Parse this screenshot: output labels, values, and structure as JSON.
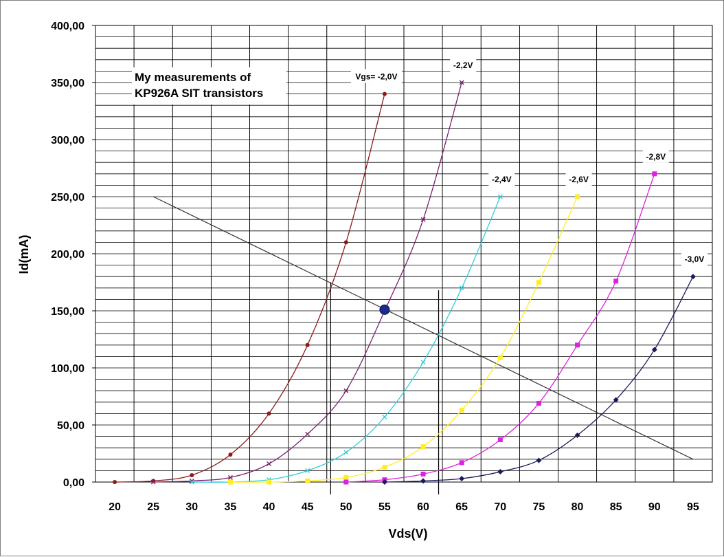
{
  "chart_data": {
    "type": "line",
    "xlabel": "Vds(V)",
    "ylabel": "Id(mA)",
    "annotation": [
      "My measurements of",
      "KP926A SIT transistors"
    ],
    "x_ticks": [
      "20",
      "25",
      "30",
      "35",
      "40",
      "45",
      "50",
      "55",
      "60",
      "65",
      "70",
      "75",
      "80",
      "85",
      "90",
      "95"
    ],
    "y_ticks": [
      "0,00",
      "50,00",
      "100,00",
      "150,00",
      "200,00",
      "250,00",
      "300,00",
      "350,00",
      "400,00"
    ],
    "xlim": [
      17.5,
      97.5
    ],
    "ylim": [
      0,
      400
    ],
    "grid": true,
    "series": [
      {
        "name": "Vgs= -2,0V",
        "color": "#8b1a1a",
        "marker": "circle",
        "x": [
          20,
          25,
          30,
          35,
          40,
          45,
          50,
          55
        ],
        "y": [
          0,
          1,
          6,
          24,
          60,
          120,
          210,
          340
        ]
      },
      {
        "name": "-2,2V",
        "color": "#7a1f6e",
        "marker": "x",
        "x": [
          25,
          30,
          35,
          40,
          45,
          50,
          55,
          60,
          65
        ],
        "y": [
          0,
          1,
          4,
          16,
          42,
          80,
          150,
          230,
          350
        ]
      },
      {
        "name": "-2,4V",
        "color": "#33ccdd",
        "marker": "x",
        "x": [
          30,
          35,
          40,
          45,
          50,
          55,
          60,
          65,
          70
        ],
        "y": [
          0,
          0,
          2,
          10,
          26,
          57,
          105,
          170,
          250
        ]
      },
      {
        "name": "-2,6V",
        "color": "#ffee22",
        "marker": "square",
        "x": [
          35,
          40,
          45,
          50,
          55,
          60,
          65,
          70,
          75,
          80
        ],
        "y": [
          0,
          0,
          1,
          4,
          13,
          31,
          63,
          109,
          175,
          250
        ]
      },
      {
        "name": "-2,8V",
        "color": "#dd22dd",
        "marker": "square",
        "x": [
          50,
          55,
          60,
          65,
          70,
          75,
          80,
          85,
          90
        ],
        "y": [
          0,
          2,
          7,
          17,
          37,
          69,
          120,
          176,
          270
        ]
      },
      {
        "name": "-3,0V",
        "color": "#1a1a5e",
        "marker": "diamond",
        "x": [
          55,
          60,
          65,
          70,
          75,
          80,
          85,
          90,
          95
        ],
        "y": [
          0,
          1,
          3,
          9,
          19,
          41,
          72,
          116,
          180
        ]
      }
    ],
    "load_line": {
      "x": [
        25,
        95
      ],
      "y": [
        250,
        20
      ],
      "color": "#333333"
    },
    "vertical_lines": [
      {
        "x": 48,
        "y": [
          0,
          175
        ]
      },
      {
        "x": 62,
        "y": [
          0,
          168
        ]
      }
    ],
    "operating_point": {
      "x": 55,
      "y": 151,
      "color": "#1a2c8c"
    }
  }
}
